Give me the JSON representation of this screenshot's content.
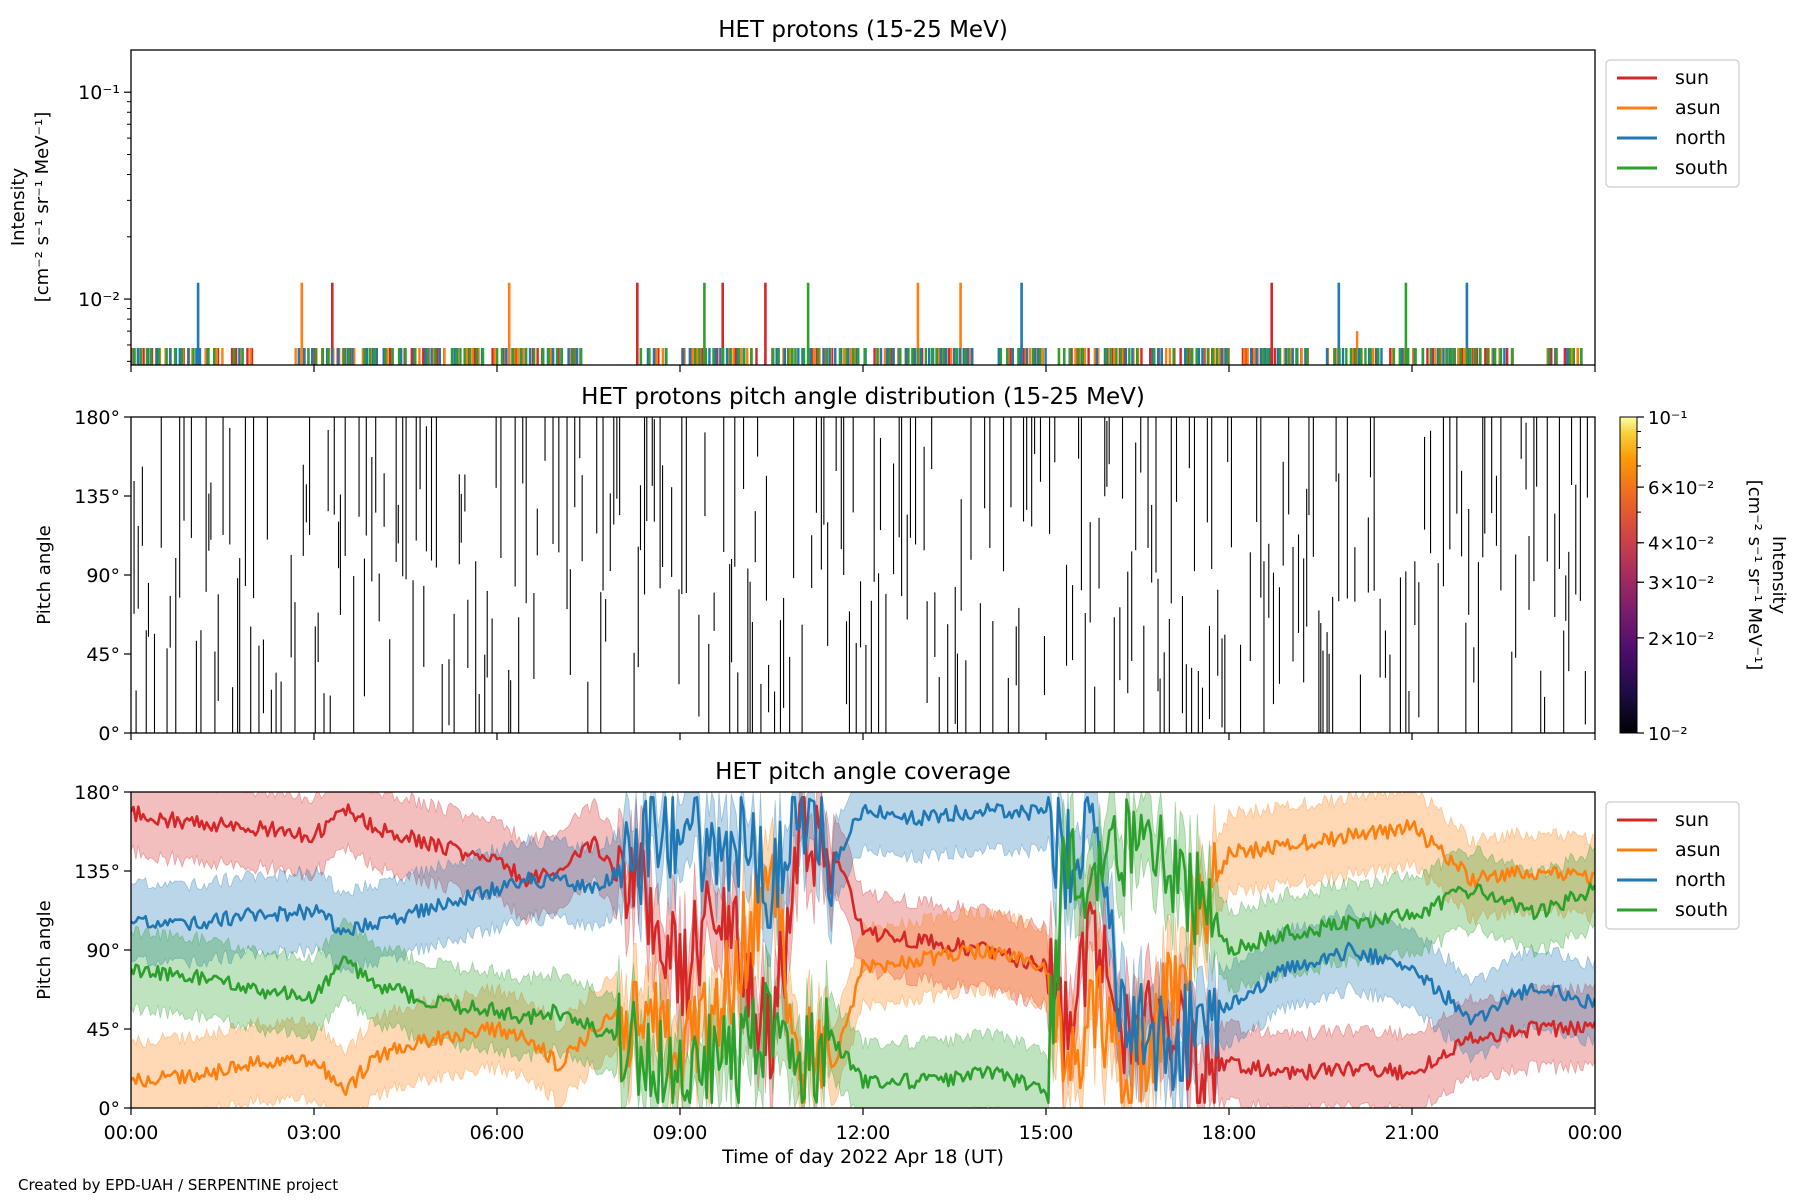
{
  "footer": "Created by EPD-UAH / SERPENTINE project",
  "xlabel": "Time of day 2022 Apr 18 (UT)",
  "x_ticks": [
    "00:00",
    "03:00",
    "06:00",
    "09:00",
    "12:00",
    "15:00",
    "18:00",
    "21:00",
    "00:00"
  ],
  "x_range_hours": [
    0,
    24
  ],
  "colors": {
    "sun": "#d62728",
    "asun": "#ff7f0e",
    "north": "#1f77b4",
    "south": "#2ca02c"
  },
  "legend": [
    "sun",
    "asun",
    "north",
    "south"
  ],
  "chart_data": [
    {
      "type": "line",
      "title": "HET protons (15-25 MeV)",
      "ylabel_line1": "Intensity",
      "ylabel_line2": "[cm⁻² s⁻¹ sr⁻¹ MeV⁻¹]",
      "yscale": "log",
      "ylim": [
        0.0048,
        0.16
      ],
      "y_ticks": [
        "10⁻¹",
        "10⁻²"
      ],
      "y_tick_values": [
        0.1,
        0.01
      ],
      "legend_position": "right",
      "baseline_level": 0.0058,
      "spike_level": 0.012,
      "series": [
        {
          "name": "sun",
          "spikes": [
            3.3,
            8.3,
            9.7,
            10.4,
            18.7
          ],
          "extra": []
        },
        {
          "name": "asun",
          "spikes": [
            2.8,
            6.2,
            12.9,
            13.6
          ],
          "extra": [
            [
              20.1,
              0.007
            ]
          ]
        },
        {
          "name": "north",
          "spikes": [
            1.1,
            14.6,
            19.8,
            21.9
          ],
          "extra": []
        },
        {
          "name": "south",
          "spikes": [
            9.4,
            11.1,
            20.9
          ],
          "extra": []
        }
      ]
    },
    {
      "type": "heatmap",
      "title": "HET protons pitch angle distribution (15-25 MeV)",
      "ylabel": "Pitch angle",
      "ylim": [
        0,
        180
      ],
      "y_ticks": [
        "0°",
        "45°",
        "90°",
        "135°",
        "180°"
      ],
      "y_tick_values": [
        0,
        45,
        90,
        135,
        180
      ],
      "colorbar": {
        "label_line1": "Intensity",
        "label_line2": "[cm⁻² s⁻¹ sr⁻¹ MeV⁻¹]",
        "scale": "log",
        "range": [
          0.01,
          0.1
        ],
        "ticks": [
          {
            "value": 0.1,
            "label": "10⁻¹"
          },
          {
            "value": 0.06,
            "label": "6×10⁻²"
          },
          {
            "value": 0.04,
            "label": "4×10⁻²"
          },
          {
            "value": 0.03,
            "label": "3×10⁻²"
          },
          {
            "value": 0.02,
            "label": "2×10⁻²"
          },
          {
            "value": 0.01,
            "label": "10⁻²"
          }
        ]
      }
    },
    {
      "type": "area",
      "title": "HET pitch angle coverage",
      "ylabel": "Pitch angle",
      "ylim": [
        0,
        180
      ],
      "y_ticks": [
        "0°",
        "45°",
        "90°",
        "135°",
        "180°"
      ],
      "y_tick_values": [
        0,
        45,
        90,
        135,
        180
      ],
      "legend_position": "right",
      "band_halfwidth_deg": 22,
      "series": [
        {
          "name": "sun",
          "x": [
            0,
            1,
            2,
            3,
            3.5,
            4,
            5,
            6,
            6.5,
            7,
            7.6,
            8,
            8.5,
            9,
            9.5,
            10,
            10.5,
            11,
            11.5,
            12,
            13,
            14,
            15,
            15.3,
            15.8,
            16.3,
            17,
            17.5,
            18,
            19,
            20,
            21,
            22,
            23,
            24
          ],
          "y": [
            168,
            162,
            160,
            155,
            170,
            160,
            150,
            140,
            130,
            135,
            150,
            130,
            120,
            70,
            110,
            90,
            40,
            160,
            150,
            100,
            95,
            90,
            80,
            40,
            100,
            40,
            60,
            20,
            25,
            20,
            22,
            20,
            40,
            45,
            45
          ]
        },
        {
          "name": "asun",
          "x": [
            0,
            1,
            2,
            3,
            3.5,
            4,
            5,
            6,
            6.5,
            7,
            7.6,
            8,
            8.5,
            9,
            9.5,
            10,
            10.5,
            11,
            11.5,
            12,
            13,
            14,
            15,
            15.3,
            15.8,
            16.3,
            17,
            17.5,
            18,
            19,
            20,
            21,
            22,
            23,
            24
          ],
          "y": [
            15,
            18,
            25,
            28,
            8,
            30,
            40,
            45,
            40,
            25,
            45,
            55,
            45,
            30,
            45,
            90,
            130,
            30,
            20,
            80,
            85,
            90,
            80,
            20,
            60,
            10,
            60,
            110,
            145,
            150,
            155,
            160,
            130,
            135,
            130
          ]
        },
        {
          "name": "north",
          "x": [
            0,
            1,
            2,
            3,
            3.5,
            4,
            5,
            6,
            6.5,
            7,
            7.6,
            8,
            8.5,
            9,
            9.5,
            10,
            10.5,
            11,
            11.5,
            12,
            13,
            14,
            15,
            15.3,
            15.8,
            16.3,
            17,
            17.5,
            18,
            19,
            20,
            21,
            22,
            23,
            24
          ],
          "y": [
            105,
            105,
            110,
            112,
            100,
            105,
            115,
            125,
            130,
            130,
            125,
            135,
            150,
            165,
            140,
            150,
            120,
            170,
            140,
            170,
            165,
            170,
            168,
            140,
            160,
            50,
            30,
            50,
            60,
            80,
            90,
            80,
            50,
            70,
            60
          ]
        },
        {
          "name": "south",
          "x": [
            0,
            1,
            2,
            3,
            3.5,
            4,
            5,
            6,
            6.5,
            7,
            7.6,
            8,
            8.5,
            9,
            9.5,
            10,
            10.5,
            11,
            11.5,
            12,
            13,
            14,
            15,
            15.3,
            15.8,
            16.3,
            17,
            17.5,
            18,
            19,
            20,
            21,
            22,
            23,
            24
          ],
          "y": [
            78,
            75,
            68,
            62,
            85,
            70,
            60,
            55,
            52,
            55,
            45,
            40,
            30,
            15,
            25,
            30,
            50,
            20,
            40,
            15,
            15,
            20,
            12,
            140,
            120,
            150,
            140,
            120,
            90,
            100,
            105,
            110,
            125,
            110,
            125
          ]
        }
      ]
    }
  ]
}
